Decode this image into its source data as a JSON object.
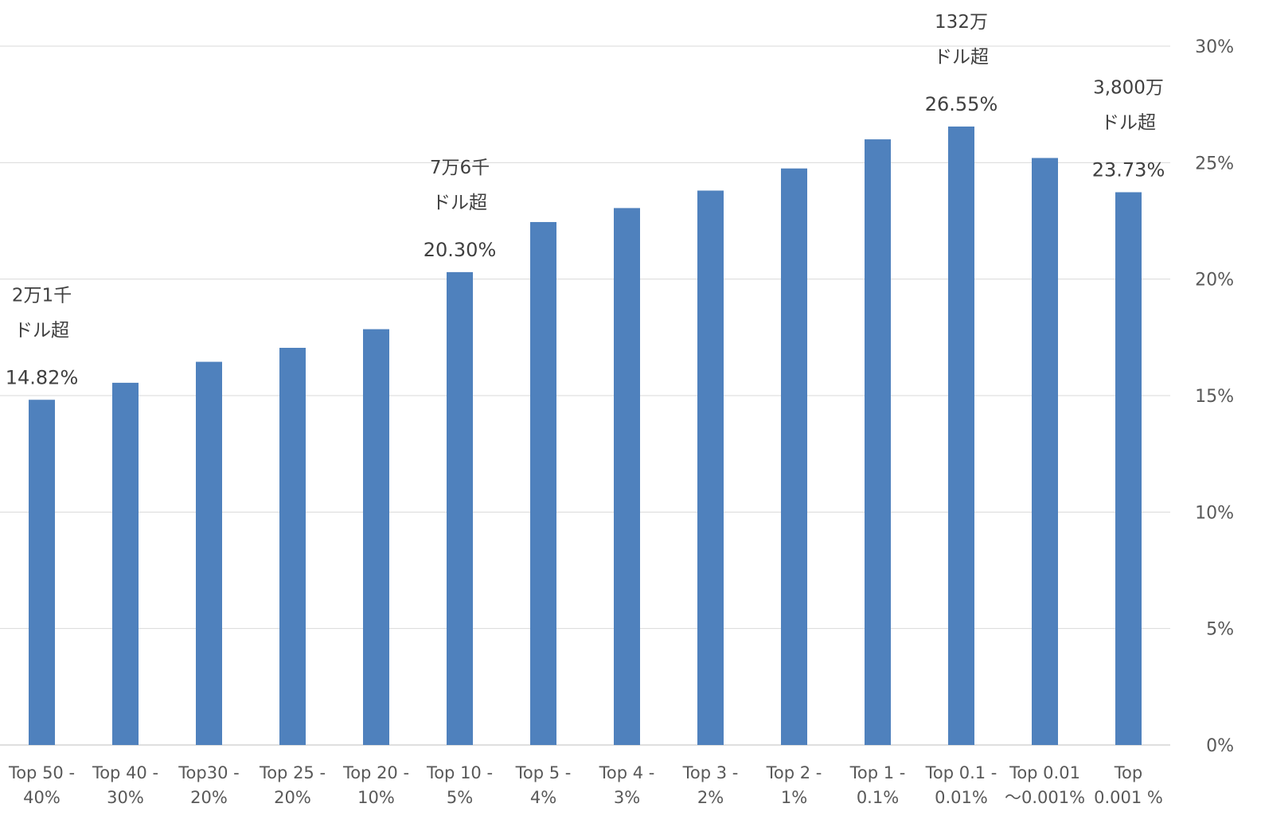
{
  "chart_data": {
    "type": "bar",
    "categories": [
      [
        "Top 50 -",
        "40%"
      ],
      [
        "Top 40 -",
        "30%"
      ],
      [
        "Top30 -",
        "20%"
      ],
      [
        "Top 25 -",
        "20%"
      ],
      [
        "Top 20 -",
        "10%"
      ],
      [
        "Top 10 -",
        "5%"
      ],
      [
        "Top 5 -",
        "4%"
      ],
      [
        "Top 4 -",
        "3%"
      ],
      [
        "Top 3 -",
        "2%"
      ],
      [
        "Top 2 -",
        "1%"
      ],
      [
        "Top 1 -",
        "0.1%"
      ],
      [
        "Top 0.1 -",
        "0.01%"
      ],
      [
        "Top 0.01",
        "〜0.001%"
      ],
      [
        "Top",
        "0.001 %"
      ]
    ],
    "values": [
      14.82,
      15.55,
      16.45,
      17.05,
      17.85,
      20.3,
      22.45,
      23.05,
      23.8,
      24.75,
      26.0,
      26.55,
      25.2,
      23.73
    ],
    "ylim": [
      0,
      30
    ],
    "y_axis_position": "right",
    "y_ticks": [
      "0%",
      "5%",
      "10%",
      "15%",
      "20%",
      "25%",
      "30%"
    ],
    "grid": true,
    "bar_color": "#4f81bd",
    "data_labels": [
      {
        "index": 0,
        "text": "14.82%"
      },
      {
        "index": 5,
        "text": "20.30%"
      },
      {
        "index": 11,
        "text": "26.55%"
      },
      {
        "index": 13,
        "text": "23.73%"
      }
    ],
    "annotations": [
      {
        "index": 0,
        "lines": [
          "2万1千",
          "ドル超"
        ]
      },
      {
        "index": 5,
        "lines": [
          "7万6千",
          "ドル超"
        ]
      },
      {
        "index": 11,
        "lines": [
          "132万",
          "ドル超"
        ]
      },
      {
        "index": 13,
        "lines": [
          "3,800万",
          "ドル超"
        ]
      }
    ]
  }
}
